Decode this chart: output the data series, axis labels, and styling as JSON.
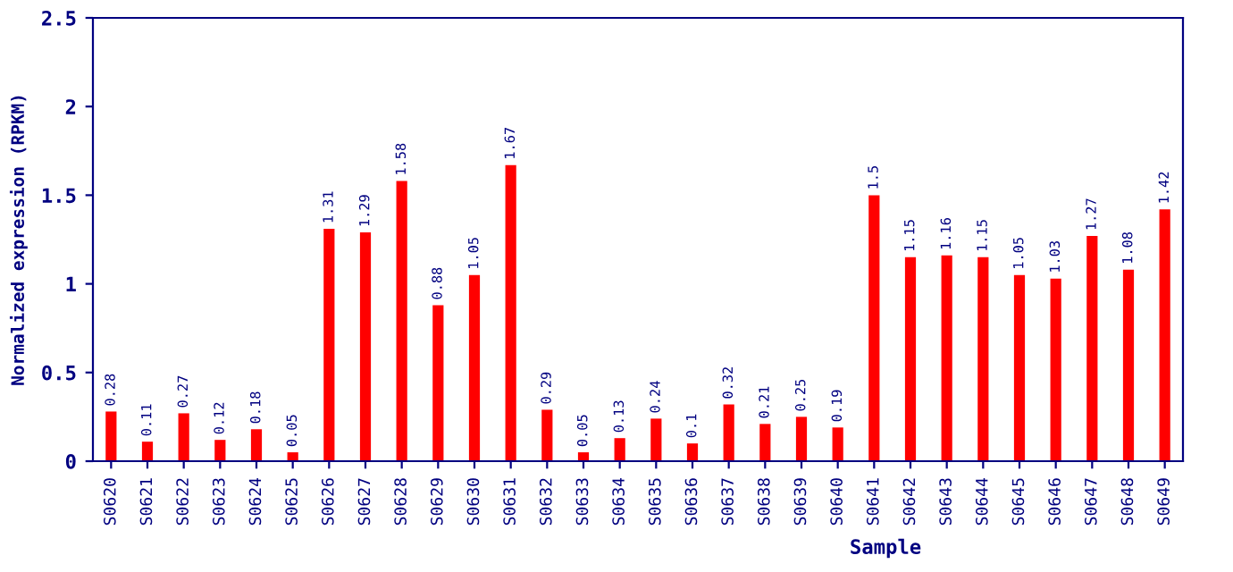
{
  "chart_data": {
    "type": "bar",
    "xlabel": "Sample",
    "ylabel": "Normalized expression (RPKM)",
    "categories": [
      "S0620",
      "S0621",
      "S0622",
      "S0623",
      "S0624",
      "S0625",
      "S0626",
      "S0627",
      "S0628",
      "S0629",
      "S0630",
      "S0631",
      "S0632",
      "S0633",
      "S0634",
      "S0635",
      "S0636",
      "S0637",
      "S0638",
      "S0639",
      "S0640",
      "S0641",
      "S0642",
      "S0643",
      "S0644",
      "S0645",
      "S0646",
      "S0647",
      "S0648",
      "S0649"
    ],
    "values": [
      0.28,
      0.11,
      0.27,
      0.12,
      0.18,
      0.05,
      1.31,
      1.29,
      1.58,
      0.88,
      1.05,
      1.67,
      0.29,
      0.05,
      0.13,
      0.24,
      0.1,
      0.32,
      0.21,
      0.25,
      0.19,
      1.5,
      1.15,
      1.16,
      1.15,
      1.05,
      1.03,
      1.27,
      1.08,
      1.42
    ],
    "color": "#ff0000",
    "ylim": [
      0,
      2.5
    ],
    "yticks": [
      0,
      0.5,
      1,
      1.5,
      2,
      2.5
    ],
    "data_labels": true,
    "grid": false,
    "legend": false
  }
}
